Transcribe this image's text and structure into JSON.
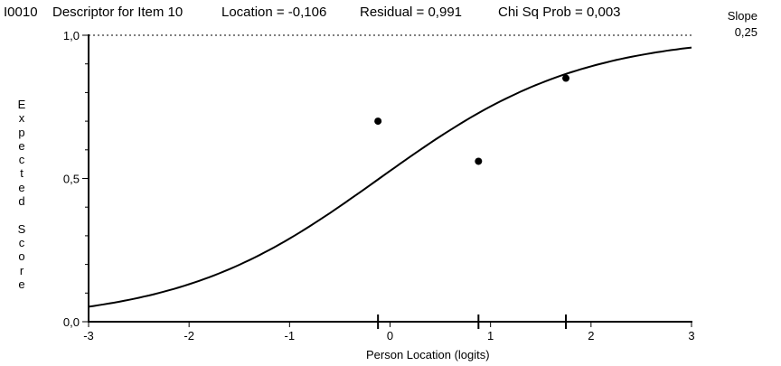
{
  "header": {
    "item_id": "I0010",
    "descriptor": "Descriptor for Item 10",
    "location": "Location = -0,106",
    "residual": "Residual = 0,991",
    "chisq": "Chi Sq Prob = 0,003"
  },
  "slope": {
    "label": "Slope",
    "value": "0,25"
  },
  "chart_data": {
    "type": "line",
    "xlabel": "Person Location (logits)",
    "ylabel": "Expected Score",
    "xlim": [
      -3,
      3
    ],
    "ylim": [
      0,
      1
    ],
    "x_ticks": [
      "-3",
      "-2",
      "-1",
      "0",
      "1",
      "2",
      "3"
    ],
    "y_ticks": [
      "0,0",
      "0,5",
      "1,0"
    ],
    "curve": {
      "location": -0.106,
      "slope": 1.0,
      "x": [
        -3.0,
        -2.5,
        -2.0,
        -1.5,
        -1.0,
        -0.5,
        -0.106,
        0.0,
        0.5,
        1.0,
        1.5,
        2.0,
        2.5,
        3.0
      ],
      "y": [
        0.05,
        0.08,
        0.13,
        0.2,
        0.29,
        0.4,
        0.5,
        0.52,
        0.63,
        0.74,
        0.82,
        0.88,
        0.93,
        0.95
      ]
    },
    "observed_points": [
      {
        "x": -0.12,
        "y": 0.7
      },
      {
        "x": 0.88,
        "y": 0.56
      },
      {
        "x": 1.75,
        "y": 0.85
      }
    ],
    "class_interval_markers": [
      -0.12,
      0.88,
      1.75
    ],
    "reference_line_at": 1.0
  }
}
